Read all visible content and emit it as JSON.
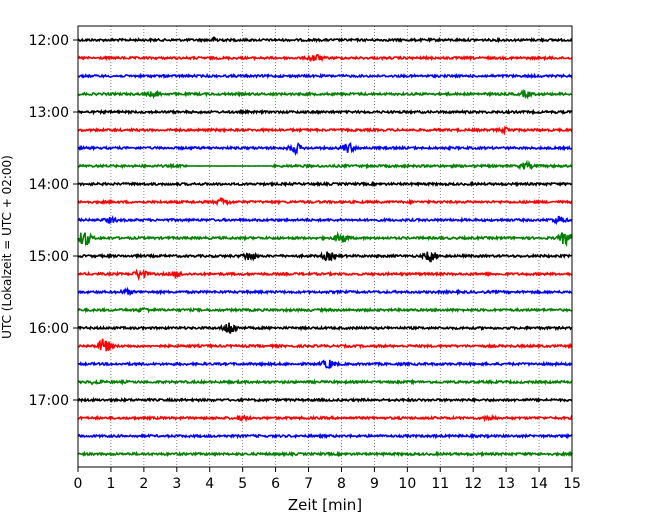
{
  "chart_data": {
    "type": "line",
    "title": "",
    "xlabel": "Zeit  [min]",
    "ylabel": "UTC (Lokalzeit = UTC + 02:00)",
    "xlim": [
      0,
      15
    ],
    "x_ticks": [
      0,
      1,
      2,
      3,
      4,
      5,
      6,
      7,
      8,
      9,
      10,
      11,
      12,
      13,
      14,
      15
    ],
    "x_tick_labels": [
      "0",
      "1",
      "2",
      "3",
      "4",
      "5",
      "6",
      "7",
      "8",
      "9",
      "10",
      "11",
      "12",
      "13",
      "14",
      "15"
    ],
    "y_tick_labels": [
      "12:00",
      "13:00",
      "14:00",
      "15:00",
      "16:00",
      "17:00"
    ],
    "grid": "vertical dotted lines at each minute",
    "trace_colors": [
      "#000000",
      "#ff0000",
      "#0000ff",
      "#008000"
    ],
    "series": [
      {
        "start": "12:00",
        "events": [
          {
            "min": 4.2,
            "amp": 0.6
          }
        ]
      },
      {
        "start": "12:15",
        "events": [
          {
            "min": 7.2,
            "amp": 1.1
          }
        ]
      },
      {
        "start": "12:30",
        "events": []
      },
      {
        "start": "12:45",
        "events": [
          {
            "min": 2.3,
            "amp": 0.6
          },
          {
            "min": 13.6,
            "amp": 0.8
          }
        ]
      },
      {
        "start": "13:00",
        "events": []
      },
      {
        "start": "13:15",
        "events": [
          {
            "min": 13.0,
            "amp": 0.6
          }
        ]
      },
      {
        "start": "13:30",
        "events": [
          {
            "min": 6.6,
            "amp": 1.4
          },
          {
            "min": 8.2,
            "amp": 1.4
          }
        ]
      },
      {
        "start": "13:45",
        "events": [
          {
            "min": 13.6,
            "amp": 0.9
          }
        ],
        "gap": [
          3.3,
          5.9
        ]
      },
      {
        "start": "14:00",
        "events": []
      },
      {
        "start": "14:15",
        "events": [
          {
            "min": 4.4,
            "amp": 1.0
          }
        ]
      },
      {
        "start": "14:30",
        "events": [
          {
            "min": 1.0,
            "amp": 0.7
          },
          {
            "min": 14.6,
            "amp": 1.1
          }
        ]
      },
      {
        "start": "14:45",
        "events": [
          {
            "min": 0.2,
            "amp": 2.4
          },
          {
            "min": 8.0,
            "amp": 1.4
          },
          {
            "min": 14.8,
            "amp": 2.0
          }
        ]
      },
      {
        "start": "15:00",
        "events": [
          {
            "min": 5.2,
            "amp": 1.3
          },
          {
            "min": 7.6,
            "amp": 1.2
          },
          {
            "min": 10.7,
            "amp": 1.6
          }
        ]
      },
      {
        "start": "15:15",
        "events": [
          {
            "min": 1.9,
            "amp": 1.4
          },
          {
            "min": 3.0,
            "amp": 0.8
          }
        ]
      },
      {
        "start": "15:30",
        "events": [
          {
            "min": 1.5,
            "amp": 0.6
          }
        ]
      },
      {
        "start": "15:45",
        "events": [
          {
            "min": 2.0,
            "amp": 0.5
          }
        ]
      },
      {
        "start": "16:00",
        "events": [
          {
            "min": 4.6,
            "amp": 2.1
          }
        ]
      },
      {
        "start": "16:15",
        "events": [
          {
            "min": 0.8,
            "amp": 2.2
          }
        ]
      },
      {
        "start": "16:30",
        "events": [
          {
            "min": 7.6,
            "amp": 1.3
          }
        ]
      },
      {
        "start": "16:45",
        "events": [
          {
            "min": 0.5,
            "amp": 0.4
          }
        ]
      },
      {
        "start": "17:00",
        "events": []
      },
      {
        "start": "17:15",
        "events": [
          {
            "min": 5.0,
            "amp": 0.5
          },
          {
            "min": 12.5,
            "amp": 0.5
          }
        ]
      },
      {
        "start": "17:30",
        "events": []
      },
      {
        "start": "17:45",
        "events": []
      }
    ]
  }
}
